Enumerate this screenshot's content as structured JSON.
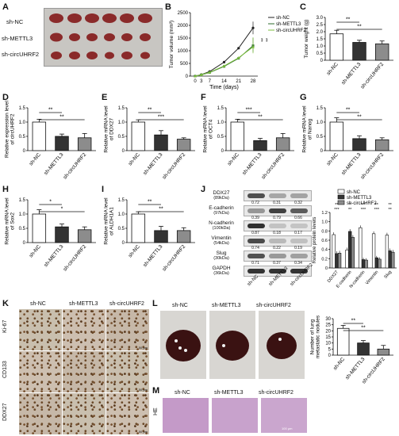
{
  "panel_labels": [
    "A",
    "B",
    "C",
    "D",
    "E",
    "F",
    "G",
    "H",
    "I",
    "J",
    "K",
    "L",
    "M"
  ],
  "groups": [
    "sh-NC",
    "sh-METTL3",
    "sh-circUHRF2"
  ],
  "panel_a": {
    "rows": [
      "sh-NC",
      "sh-METTL3",
      "sh-circUHRF2"
    ]
  },
  "panel_b": {
    "ylabel": "Tumor volume (mm³)",
    "xlabel": "Time (days)",
    "legend": [
      "sh-NC",
      "sh-METTL3",
      "sh-circUHRF2"
    ],
    "sig": [
      "**",
      "**"
    ]
  },
  "panel_k": {
    "rows": [
      "Ki-67",
      "CD133",
      "DDX27"
    ],
    "cols": [
      "sh-NC",
      "sh-METTL3",
      "sh-circUHRF2"
    ],
    "scale": "50 μm"
  },
  "panel_l": {
    "cols": [
      "sh-NC",
      "sh-METTL3",
      "sh-circUHRF2"
    ]
  },
  "panel_m": {
    "row": "HE",
    "cols": [
      "sh-NC",
      "sh-METTL3",
      "sh-circUHRF2"
    ],
    "scale": "100 μm"
  },
  "panel_j": {
    "blots": [
      {
        "name": "DDX27",
        "kda": "(89kDa)",
        "vals": [
          "0.72",
          "0.31",
          "0.32"
        ]
      },
      {
        "name": "E-cadherin",
        "kda": "(97kDa)",
        "vals": [
          "0.39",
          "0.79",
          "0.66"
        ]
      },
      {
        "name": "N-cadherin",
        "kda": "(100kDa)",
        "vals": [
          "0.87",
          "0.18",
          "0.17"
        ]
      },
      {
        "name": "Vimentin",
        "kda": "(54kDa)",
        "vals": [
          "0.74",
          "0.22",
          "0.19"
        ]
      },
      {
        "name": "Slug",
        "kda": "(30kDa)",
        "vals": [
          "0.71",
          "0.37",
          "0.34"
        ]
      },
      {
        "name": "GAPDH",
        "kda": "(36kDa)",
        "vals": [
          "",
          "",
          ""
        ]
      }
    ],
    "lanes": [
      "sh-NC",
      "sh-METTL3",
      "sh-circUHRF2"
    ]
  },
  "chart_data": [
    {
      "id": "B",
      "type": "line",
      "x": [
        0,
        3,
        7,
        14,
        21,
        28
      ],
      "series": [
        {
          "name": "sh-NC",
          "values": [
            0,
            60,
            180,
            550,
            1100,
            1900
          ]
        },
        {
          "name": "sh-METTL3",
          "values": [
            0,
            50,
            140,
            380,
            700,
            1200
          ]
        },
        {
          "name": "sh-circUHRF2",
          "values": [
            0,
            55,
            150,
            400,
            720,
            1150
          ]
        }
      ],
      "yticks": [
        0,
        500,
        1000,
        1500,
        2000,
        2500
      ],
      "ylim": [
        0,
        2500
      ],
      "xlabel": "Time (days)",
      "ylabel": "Tumor volume (mm³)"
    },
    {
      "id": "C",
      "type": "bar",
      "categories": [
        "sh-NC",
        "sh-METTL3",
        "sh-circUHRF2"
      ],
      "values": [
        1.85,
        1.25,
        1.15
      ],
      "errors": [
        0.25,
        0.15,
        0.2
      ],
      "yticks": [
        0,
        0.5,
        1.0,
        1.5,
        2.0,
        2.5,
        3.0
      ],
      "ytick_labels": [
        "0",
        "0.5",
        "1.0",
        "1.5",
        "2.0",
        "2.5",
        "3.0"
      ],
      "ylim": [
        0,
        3.0
      ],
      "ylabel": "Tumor weight (g)",
      "sig": [
        {
          "from": 0,
          "to": 1,
          "label": "**"
        },
        {
          "from": 0,
          "to": 2,
          "label": "**"
        }
      ]
    },
    {
      "id": "D",
      "type": "bar",
      "categories": [
        "sh-NC",
        "sh-METTL3",
        "sh-circUHRF2"
      ],
      "values": [
        1.0,
        0.5,
        0.45
      ],
      "errors": [
        0.1,
        0.08,
        0.15
      ],
      "yticks": [
        0,
        0.5,
        1.0,
        1.5
      ],
      "ytick_labels": [
        "0",
        "0.5",
        "1.0",
        "1.5"
      ],
      "ylim": [
        0,
        1.5
      ],
      "ylabel": "Relative expression level of circUHRF2",
      "sig": [
        {
          "from": 0,
          "to": 1,
          "label": "**"
        },
        {
          "from": 0,
          "to": 2,
          "label": "**"
        }
      ]
    },
    {
      "id": "E",
      "type": "bar",
      "categories": [
        "sh-NC",
        "sh-METTL3",
        "sh-circUHRF2"
      ],
      "values": [
        1.0,
        0.55,
        0.4
      ],
      "errors": [
        0.08,
        0.15,
        0.05
      ],
      "yticks": [
        0,
        0.5,
        1.0,
        1.5
      ],
      "ytick_labels": [
        "0",
        "0.5",
        "1.0",
        "1.5"
      ],
      "ylim": [
        0,
        1.5
      ],
      "ylabel": "Relative mRNA level of DDX27",
      "sig": [
        {
          "from": 0,
          "to": 1,
          "label": "**"
        },
        {
          "from": 0,
          "to": 2,
          "label": "***"
        }
      ]
    },
    {
      "id": "F",
      "type": "bar",
      "categories": [
        "sh-NC",
        "sh-METTL3",
        "sh-circUHRF2"
      ],
      "values": [
        1.0,
        0.35,
        0.45
      ],
      "errors": [
        0.1,
        0.08,
        0.15
      ],
      "yticks": [
        0,
        0.5,
        1.0,
        1.5
      ],
      "ytick_labels": [
        "0",
        "0.5",
        "1.0",
        "1.5"
      ],
      "ylim": [
        0,
        1.5
      ],
      "ylabel": "Relative mRNA level of OCT4",
      "sig": [
        {
          "from": 0,
          "to": 1,
          "label": "***"
        },
        {
          "from": 0,
          "to": 2,
          "label": "**"
        }
      ]
    },
    {
      "id": "G",
      "type": "bar",
      "categories": [
        "sh-NC",
        "sh-METTL3",
        "sh-circUHRF2"
      ],
      "values": [
        1.0,
        0.42,
        0.38
      ],
      "errors": [
        0.15,
        0.1,
        0.07
      ],
      "yticks": [
        0,
        0.5,
        1.0,
        1.5
      ],
      "ytick_labels": [
        "0",
        "0.5",
        "1.0",
        "1.5"
      ],
      "ylim": [
        0,
        1.5
      ],
      "ylabel": "Relative mRNA level of Nanog",
      "sig": [
        {
          "from": 0,
          "to": 1,
          "label": "**"
        },
        {
          "from": 0,
          "to": 2,
          "label": "**"
        }
      ]
    },
    {
      "id": "H",
      "type": "bar",
      "categories": [
        "sh-NC",
        "sh-METTL3",
        "sh-circUHRF2"
      ],
      "values": [
        1.0,
        0.55,
        0.45
      ],
      "errors": [
        0.15,
        0.1,
        0.1
      ],
      "yticks": [
        0,
        0.5,
        1.0,
        1.5
      ],
      "ytick_labels": [
        "0",
        "0.5",
        "1.0",
        "1.5"
      ],
      "ylim": [
        0,
        1.5
      ],
      "ylabel": "Relative mRNA level of Sox2",
      "sig": [
        {
          "from": 0,
          "to": 1,
          "label": "*"
        },
        {
          "from": 0,
          "to": 2,
          "label": "*"
        }
      ]
    },
    {
      "id": "I",
      "type": "bar",
      "categories": [
        "sh-NC",
        "sh-METTL3",
        "sh-circUHRF2"
      ],
      "values": [
        1.0,
        0.42,
        0.42
      ],
      "errors": [
        0.08,
        0.15,
        0.1
      ],
      "yticks": [
        0,
        0.5,
        1.0,
        1.5
      ],
      "ytick_labels": [
        "0",
        "0.5",
        "1.0",
        "1.5"
      ],
      "ylim": [
        0,
        1.5
      ],
      "ylabel": "Relative mRNA level of ALDH1A1",
      "sig": [
        {
          "from": 0,
          "to": 1,
          "label": "**"
        },
        {
          "from": 0,
          "to": 2,
          "label": "**"
        }
      ]
    },
    {
      "id": "J",
      "type": "bar",
      "categories": [
        "DDX27",
        "E-cadherin",
        "N-cadherin",
        "Vimentin",
        "Slug"
      ],
      "series": [
        {
          "name": "sh-NC",
          "values": [
            0.72,
            0.39,
            0.87,
            0.74,
            0.71
          ],
          "errors": [
            0.05,
            0.05,
            0.05,
            0.05,
            0.05
          ]
        },
        {
          "name": "sh-METTL3",
          "values": [
            0.31,
            0.79,
            0.18,
            0.22,
            0.37
          ],
          "errors": [
            0.05,
            0.05,
            0.04,
            0.04,
            0.05
          ]
        },
        {
          "name": "sh-circUHRF2",
          "values": [
            0.32,
            0.66,
            0.17,
            0.19,
            0.34
          ],
          "errors": [
            0.05,
            0.05,
            0.04,
            0.04,
            0.05
          ]
        }
      ],
      "yticks": [
        0,
        0.2,
        0.4,
        0.6,
        0.8,
        1.0,
        1.2
      ],
      "ytick_labels": [
        "0",
        "0.2",
        "0.4",
        "0.6",
        "0.8",
        "1.0",
        "1.2"
      ],
      "ylim": [
        0,
        1.2
      ],
      "ylabel": "Relative protein levels",
      "sig_top": [
        [
          "***",
          "**"
        ],
        [
          "**",
          "*"
        ],
        [
          "***",
          "***"
        ],
        [
          "***",
          "**"
        ],
        [
          "**",
          "**"
        ]
      ]
    },
    {
      "id": "L",
      "type": "bar",
      "categories": [
        "sh-NC",
        "sh-METTL3",
        "sh-circUHRF2"
      ],
      "values": [
        22,
        10,
        5
      ],
      "errors": [
        2.5,
        2,
        3
      ],
      "yticks": [
        0,
        5,
        10,
        15,
        20,
        25,
        30
      ],
      "ytick_labels": [
        "0",
        "5",
        "10",
        "15",
        "20",
        "25",
        "30"
      ],
      "ylim": [
        0,
        30
      ],
      "ylabel": "Number of lung metastatic nodules",
      "sig": [
        {
          "from": 0,
          "to": 1,
          "label": "**"
        },
        {
          "from": 0,
          "to": 2,
          "label": "**"
        }
      ]
    }
  ]
}
